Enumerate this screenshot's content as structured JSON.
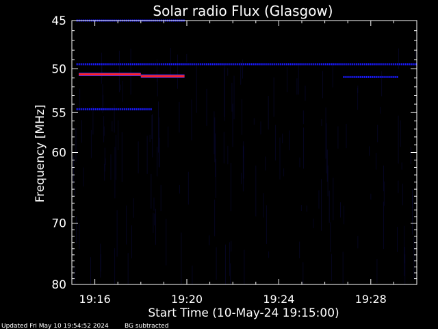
{
  "chart_data": {
    "type": "heatmap",
    "title": "Solar radio Flux (Glasgow)",
    "xlabel": "Start Time (10-May-24 19:15:00)",
    "ylabel": "Frequency [MHz]",
    "x_ticks": [
      "19:16",
      "19:20",
      "19:24",
      "19:28"
    ],
    "x_tick_minutes": [
      1,
      5,
      9,
      13
    ],
    "xlim_minutes": [
      0,
      15
    ],
    "y_ticks": [
      45,
      50,
      55,
      60,
      70,
      80
    ],
    "ylim": [
      45,
      80
    ],
    "y_scale": "log",
    "grid": false,
    "colors": {
      "background": "#000000",
      "axis": "#ffffff",
      "weak": "#1a1aff",
      "strong": "#ff2020"
    },
    "bands": [
      {
        "freq": 45.0,
        "start_min": 0.2,
        "end_min": 4.9,
        "intensity": "weak"
      },
      {
        "freq": 49.5,
        "start_min": 0.2,
        "end_min": 15.0,
        "intensity": "weak"
      },
      {
        "freq": 50.6,
        "start_min": 0.3,
        "end_min": 3.0,
        "intensity": "strong"
      },
      {
        "freq": 50.8,
        "start_min": 3.0,
        "end_min": 4.9,
        "intensity": "strong"
      },
      {
        "freq": 50.9,
        "start_min": 11.8,
        "end_min": 14.2,
        "intensity": "weak"
      },
      {
        "freq": 54.6,
        "start_min": 0.2,
        "end_min": 3.5,
        "intensity": "weak"
      }
    ]
  },
  "footer": {
    "updated": "Updated Fri May 10 19:54:52 2024",
    "note": "BG subtracted"
  }
}
